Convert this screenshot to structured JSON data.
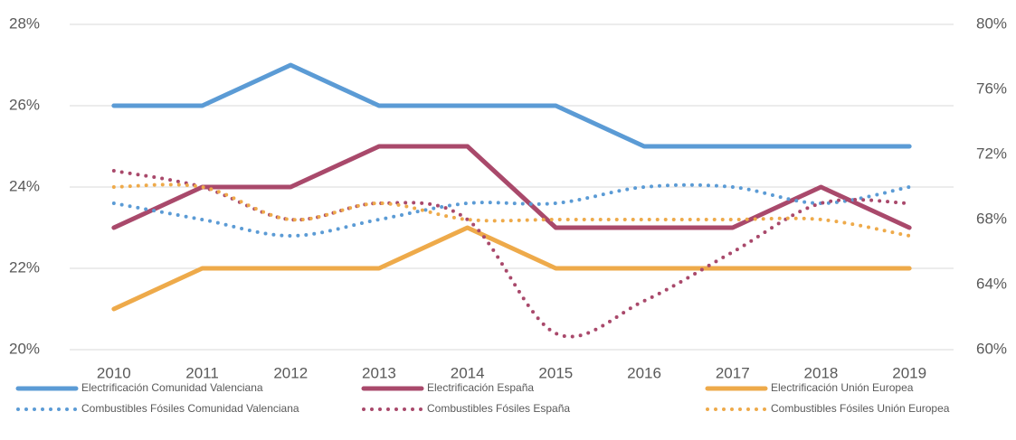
{
  "chart_data": {
    "type": "line",
    "x": [
      2010,
      2011,
      2012,
      2013,
      2014,
      2015,
      2016,
      2017,
      2018,
      2019
    ],
    "ylim": [
      20,
      28
    ],
    "yticks": [
      {
        "value": 20,
        "label": "20%"
      },
      {
        "value": 22,
        "label": "22%"
      },
      {
        "value": 24,
        "label": "24%"
      },
      {
        "value": 26,
        "label": "26%"
      },
      {
        "value": 28,
        "label": "28%"
      }
    ],
    "y2lim": [
      60,
      80
    ],
    "y2ticks": [
      {
        "value": 60,
        "label": "60%"
      },
      {
        "value": 64,
        "label": "64%"
      },
      {
        "value": 68,
        "label": "68%"
      },
      {
        "value": 72,
        "label": "72%"
      },
      {
        "value": 76,
        "label": "76%"
      },
      {
        "value": 80,
        "label": "80%"
      }
    ],
    "grid": true,
    "legend": "bottom",
    "series": [
      {
        "name": "Electrificación Comunidad Valenciana",
        "color": "#5b9bd5",
        "style": "solid",
        "values": [
          26,
          26,
          27,
          26,
          26,
          26,
          25,
          25,
          25,
          25
        ]
      },
      {
        "name": "Electrificación España",
        "color": "#a9496b",
        "style": "solid",
        "values": [
          23,
          24,
          24,
          25,
          25,
          23,
          23,
          23,
          24,
          23
        ]
      },
      {
        "name": "Electrificación Unión Europea",
        "color": "#eeaa4a",
        "style": "solid",
        "values": [
          21,
          22,
          22,
          22,
          23,
          22,
          22,
          22,
          22,
          22
        ]
      },
      {
        "name": "Combustibles Fósiles Comunidad Valenciana",
        "color": "#5b9bd5",
        "style": "dotted",
        "axis": "y2",
        "values": [
          69,
          68,
          67,
          68,
          69,
          69,
          70,
          70,
          69,
          70
        ]
      },
      {
        "name": "Combustibles Fósiles España",
        "color": "#a9496b",
        "style": "dotted",
        "axis": "y2",
        "values": [
          71,
          70,
          68,
          69,
          68,
          61,
          63,
          66,
          69,
          69
        ]
      },
      {
        "name": "Combustibles Fósiles Unión Europea",
        "color": "#eeaa4a",
        "style": "dotted",
        "axis": "y2",
        "values": [
          70,
          70,
          68,
          69,
          68,
          68,
          68,
          68,
          68,
          67
        ]
      }
    ]
  }
}
